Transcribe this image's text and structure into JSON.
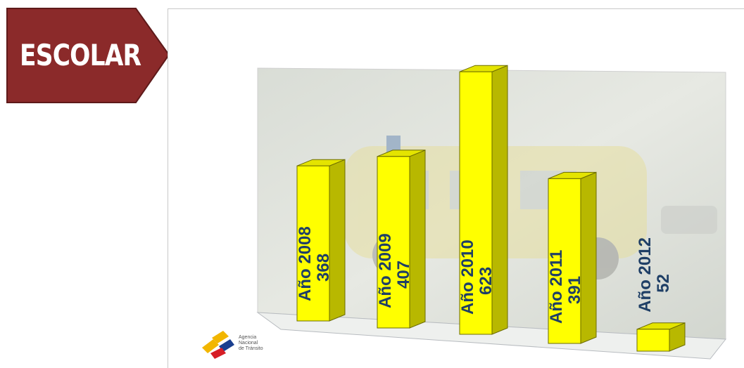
{
  "banner": {
    "text": "ESCOLAR",
    "color": "#8b2a2a"
  },
  "logo": {
    "line1": "Agencia",
    "line2": "Nacional",
    "line3": "de Tránsito"
  },
  "chart_data": {
    "type": "bar",
    "title": "",
    "xlabel": "",
    "ylabel": "",
    "categories": [
      "Año 2008",
      "Año 2009",
      "Año 2010",
      "Año 2011",
      "Año 2012"
    ],
    "values": [
      368,
      407,
      623,
      391,
      52
    ],
    "ylim": [
      0,
      700
    ],
    "grid": false,
    "bar_color": "#ffff00",
    "label_color": "#1f3f66"
  }
}
